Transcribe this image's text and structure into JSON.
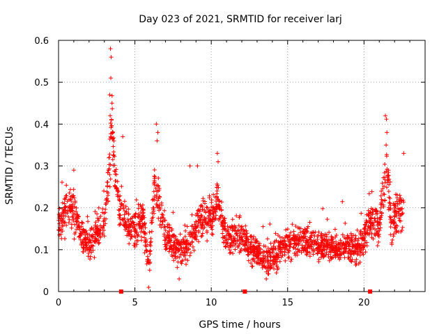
{
  "chart_data": {
    "type": "scatter",
    "title": "Day 023 of 2021, SRMTID for receiver larj",
    "xlabel": "GPS time / hours",
    "ylabel": "SRMTID / TECUs",
    "xlim": [
      0,
      24
    ],
    "ylim": [
      0,
      0.6
    ],
    "x_ticks": [
      0,
      5,
      10,
      15,
      20
    ],
    "x_tick_labels": [
      "0",
      "5",
      "10",
      "15",
      "20"
    ],
    "y_ticks": [
      0,
      0.1,
      0.2,
      0.3,
      0.4,
      0.5,
      0.6
    ],
    "y_tick_labels": [
      "0",
      "0.1",
      "0.2",
      "0.3",
      "0.4",
      "0.5",
      "0.6"
    ],
    "grid": true,
    "marker": "+",
    "series_color": "#ff0000",
    "gap_markers_x": [
      4.1,
      12.2,
      20.4
    ],
    "profile": [
      [
        0.0,
        0.16
      ],
      [
        0.5,
        0.19
      ],
      [
        1.0,
        0.2
      ],
      [
        1.5,
        0.13
      ],
      [
        2.0,
        0.11
      ],
      [
        2.5,
        0.14
      ],
      [
        3.0,
        0.16
      ],
      [
        3.3,
        0.28
      ],
      [
        3.5,
        0.4
      ],
      [
        3.7,
        0.28
      ],
      [
        4.0,
        0.2
      ],
      [
        4.5,
        0.16
      ],
      [
        5.0,
        0.14
      ],
      [
        5.5,
        0.18
      ],
      [
        5.9,
        0.05
      ],
      [
        6.3,
        0.25
      ],
      [
        6.7,
        0.18
      ],
      [
        7.0,
        0.13
      ],
      [
        7.5,
        0.11
      ],
      [
        8.0,
        0.1
      ],
      [
        8.5,
        0.12
      ],
      [
        9.0,
        0.15
      ],
      [
        9.5,
        0.18
      ],
      [
        10.0,
        0.17
      ],
      [
        10.4,
        0.22
      ],
      [
        10.8,
        0.16
      ],
      [
        11.0,
        0.13
      ],
      [
        12.0,
        0.13
      ],
      [
        12.5,
        0.1
      ],
      [
        13.0,
        0.09
      ],
      [
        13.5,
        0.08
      ],
      [
        14.0,
        0.08
      ],
      [
        14.5,
        0.1
      ],
      [
        15.0,
        0.11
      ],
      [
        16.0,
        0.12
      ],
      [
        17.0,
        0.11
      ],
      [
        18.0,
        0.1
      ],
      [
        19.0,
        0.11
      ],
      [
        19.5,
        0.1
      ],
      [
        20.0,
        0.13
      ],
      [
        20.5,
        0.18
      ],
      [
        21.0,
        0.14
      ],
      [
        21.2,
        0.22
      ],
      [
        21.5,
        0.3
      ],
      [
        21.8,
        0.16
      ],
      [
        22.2,
        0.2
      ],
      [
        22.6,
        0.19
      ]
    ],
    "spikes": [
      {
        "x": 3.4,
        "y": 0.58
      },
      {
        "x": 3.45,
        "y": 0.56
      },
      {
        "x": 3.42,
        "y": 0.51
      },
      {
        "x": 3.35,
        "y": 0.47
      },
      {
        "x": 3.5,
        "y": 0.45
      },
      {
        "x": 3.38,
        "y": 0.42
      },
      {
        "x": 3.55,
        "y": 0.38
      },
      {
        "x": 6.4,
        "y": 0.4
      },
      {
        "x": 6.5,
        "y": 0.38
      },
      {
        "x": 6.45,
        "y": 0.36
      },
      {
        "x": 21.4,
        "y": 0.42
      },
      {
        "x": 21.5,
        "y": 0.38
      },
      {
        "x": 21.45,
        "y": 0.35
      },
      {
        "x": 22.6,
        "y": 0.33
      },
      {
        "x": 10.4,
        "y": 0.33
      },
      {
        "x": 10.45,
        "y": 0.31
      },
      {
        "x": 5.9,
        "y": 0.01
      },
      {
        "x": 7.9,
        "y": 0.03
      },
      {
        "x": 13.6,
        "y": 0.03
      },
      {
        "x": 9.1,
        "y": 0.3
      },
      {
        "x": 4.2,
        "y": 0.37
      },
      {
        "x": 1.0,
        "y": 0.29
      },
      {
        "x": 8.6,
        "y": 0.3
      }
    ],
    "points_per_hour": 95
  }
}
